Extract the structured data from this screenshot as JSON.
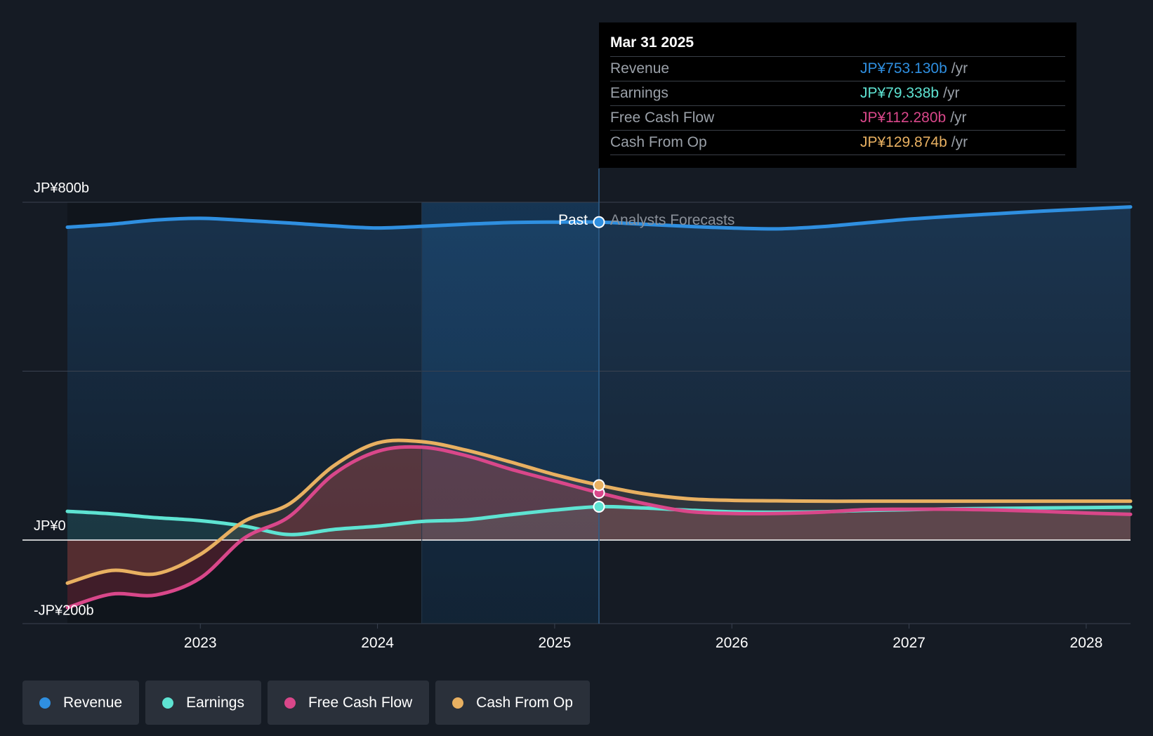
{
  "chart_data": {
    "type": "line",
    "x_unit": "year",
    "xlim": [
      2022.25,
      2028.25
    ],
    "ylim": [
      -200,
      800
    ],
    "y_tick_labels": [
      {
        "value": 800,
        "label": "JP¥800b"
      },
      {
        "value": 0,
        "label": "JP¥0"
      },
      {
        "value": -200,
        "label": "-JP¥200b"
      }
    ],
    "x_tick_labels": [
      "2023",
      "2024",
      "2025",
      "2026",
      "2027",
      "2028"
    ],
    "x_tick_values": [
      2023,
      2024,
      2025,
      2026,
      2027,
      2028
    ],
    "divider_x": 2025.25,
    "highlight_start_x": 2024.25,
    "past_label": "Past",
    "forecast_label": "Analysts Forecasts",
    "series": [
      {
        "name": "Revenue",
        "color": "#2f8fe0",
        "points": [
          [
            2022.25,
            741
          ],
          [
            2022.5,
            748
          ],
          [
            2022.75,
            758
          ],
          [
            2023.0,
            762
          ],
          [
            2023.25,
            757
          ],
          [
            2023.5,
            751
          ],
          [
            2023.75,
            744
          ],
          [
            2024.0,
            739
          ],
          [
            2024.25,
            743
          ],
          [
            2024.5,
            748
          ],
          [
            2024.75,
            752
          ],
          [
            2025.0,
            753
          ],
          [
            2025.25,
            753
          ],
          [
            2025.5,
            748
          ],
          [
            2025.75,
            743
          ],
          [
            2026.0,
            739
          ],
          [
            2026.25,
            737
          ],
          [
            2026.5,
            742
          ],
          [
            2026.75,
            751
          ],
          [
            2027.0,
            760
          ],
          [
            2027.25,
            767
          ],
          [
            2027.5,
            773
          ],
          [
            2027.75,
            779
          ],
          [
            2028.0,
            784
          ],
          [
            2028.25,
            789
          ]
        ]
      },
      {
        "name": "Earnings",
        "color": "#5ee3d2",
        "points": [
          [
            2022.25,
            68
          ],
          [
            2022.5,
            62
          ],
          [
            2022.75,
            53
          ],
          [
            2023.0,
            46
          ],
          [
            2023.25,
            33
          ],
          [
            2023.5,
            13
          ],
          [
            2023.75,
            25
          ],
          [
            2024.0,
            33
          ],
          [
            2024.25,
            44
          ],
          [
            2024.5,
            48
          ],
          [
            2024.75,
            60
          ],
          [
            2025.0,
            71
          ],
          [
            2025.25,
            79
          ],
          [
            2025.5,
            76
          ],
          [
            2025.75,
            71
          ],
          [
            2026.0,
            67
          ],
          [
            2026.25,
            66
          ],
          [
            2026.5,
            67
          ],
          [
            2026.75,
            70
          ],
          [
            2027.0,
            72
          ],
          [
            2027.25,
            74
          ],
          [
            2027.5,
            75
          ],
          [
            2027.75,
            76
          ],
          [
            2028.0,
            77
          ],
          [
            2028.25,
            78
          ]
        ]
      },
      {
        "name": "Free Cash Flow",
        "color": "#d9478a",
        "points": [
          [
            2022.25,
            -160
          ],
          [
            2022.5,
            -128
          ],
          [
            2022.75,
            -130
          ],
          [
            2023.0,
            -90
          ],
          [
            2023.25,
            5
          ],
          [
            2023.5,
            55
          ],
          [
            2023.75,
            155
          ],
          [
            2024.0,
            210
          ],
          [
            2024.25,
            220
          ],
          [
            2024.5,
            200
          ],
          [
            2024.75,
            168
          ],
          [
            2025.0,
            140
          ],
          [
            2025.25,
            112
          ],
          [
            2025.5,
            87
          ],
          [
            2025.75,
            68
          ],
          [
            2026.0,
            63
          ],
          [
            2026.25,
            63
          ],
          [
            2026.5,
            66
          ],
          [
            2026.75,
            72
          ],
          [
            2027.0,
            73
          ],
          [
            2027.25,
            73
          ],
          [
            2027.5,
            71
          ],
          [
            2027.75,
            68
          ],
          [
            2028.0,
            64
          ],
          [
            2028.25,
            61
          ]
        ]
      },
      {
        "name": "Cash From Op",
        "color": "#e8b061",
        "points": [
          [
            2022.25,
            -102
          ],
          [
            2022.5,
            -72
          ],
          [
            2022.75,
            -80
          ],
          [
            2023.0,
            -34
          ],
          [
            2023.25,
            45
          ],
          [
            2023.5,
            85
          ],
          [
            2023.75,
            175
          ],
          [
            2024.0,
            230
          ],
          [
            2024.25,
            233
          ],
          [
            2024.5,
            213
          ],
          [
            2024.75,
            185
          ],
          [
            2025.0,
            155
          ],
          [
            2025.25,
            130
          ],
          [
            2025.5,
            110
          ],
          [
            2025.75,
            98
          ],
          [
            2026.0,
            94
          ],
          [
            2026.25,
            93
          ],
          [
            2026.5,
            92
          ],
          [
            2026.75,
            92
          ],
          [
            2027.0,
            92
          ],
          [
            2027.25,
            92
          ],
          [
            2027.5,
            92
          ],
          [
            2027.75,
            92
          ],
          [
            2028.0,
            92
          ],
          [
            2028.25,
            92
          ]
        ]
      }
    ]
  },
  "tooltip": {
    "date": "Mar 31 2025",
    "rows": [
      {
        "label": "Revenue",
        "value": "JP¥753.130b",
        "unit": "/yr",
        "color": "#2f8fe0"
      },
      {
        "label": "Earnings",
        "value": "JP¥79.338b",
        "unit": "/yr",
        "color": "#5ee3d2"
      },
      {
        "label": "Free Cash Flow",
        "value": "JP¥112.280b",
        "unit": "/yr",
        "color": "#d9478a"
      },
      {
        "label": "Cash From Op",
        "value": "JP¥129.874b",
        "unit": "/yr",
        "color": "#e8b061"
      }
    ]
  },
  "legend": [
    {
      "label": "Revenue",
      "color": "#2f8fe0"
    },
    {
      "label": "Earnings",
      "color": "#5ee3d2"
    },
    {
      "label": "Free Cash Flow",
      "color": "#d9478a"
    },
    {
      "label": "Cash From Op",
      "color": "#e8b061"
    }
  ]
}
